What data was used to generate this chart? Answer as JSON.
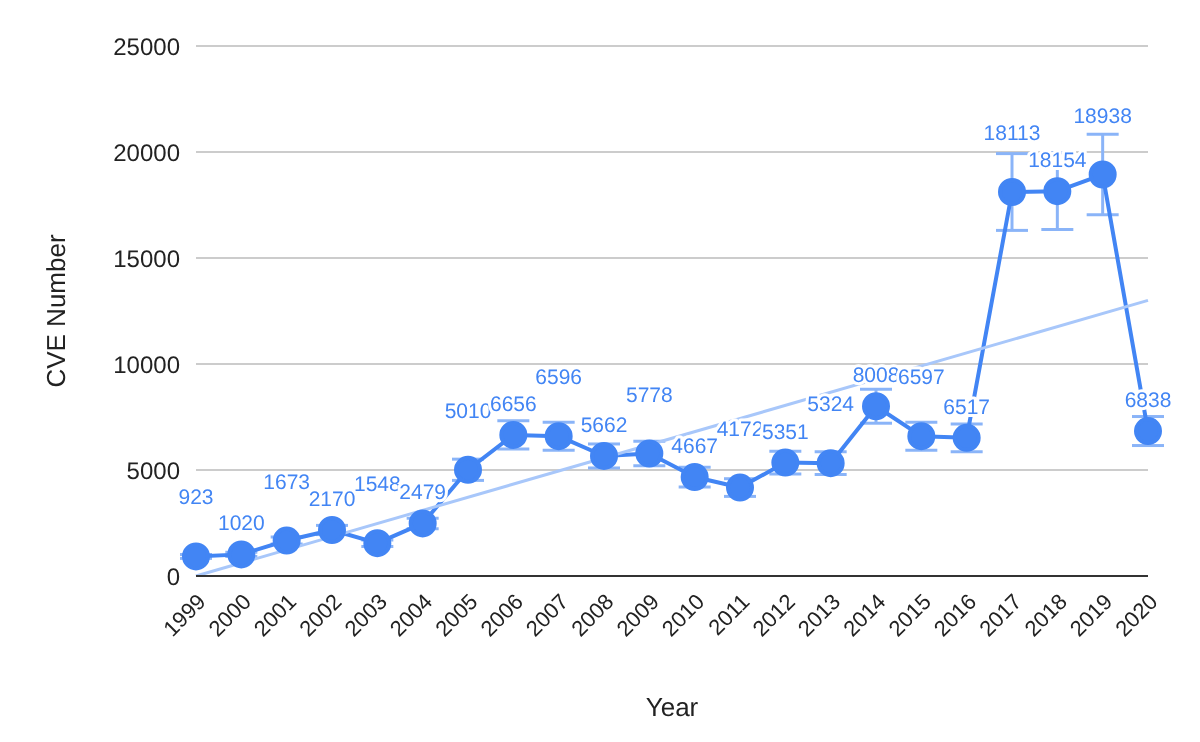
{
  "chart_data": {
    "type": "line",
    "xlabel": "Year",
    "ylabel": "CVE Number",
    "categories": [
      "1999",
      "2000",
      "2001",
      "2002",
      "2003",
      "2004",
      "2005",
      "2006",
      "2007",
      "2008",
      "2009",
      "2010",
      "2011",
      "2012",
      "2013",
      "2014",
      "2015",
      "2016",
      "2017",
      "2018",
      "2019",
      "2020"
    ],
    "series": [
      {
        "color": "#4285f4",
        "values": [
          923,
          1020,
          1673,
          2170,
          1548,
          2479,
          5010,
          6656,
          6596,
          5662,
          5778,
          4667,
          4172,
          5351,
          5324,
          8008,
          6597,
          6517,
          18113,
          18154,
          18938,
          6838
        ],
        "errors": [
          92,
          102,
          167,
          217,
          155,
          248,
          501,
          666,
          660,
          566,
          578,
          467,
          417,
          535,
          532,
          801,
          660,
          652,
          1811,
          1815,
          1894,
          684
        ],
        "marker": "circle",
        "value_labels": [
          "923",
          "1020",
          "1673",
          "2170",
          "1548",
          "2479",
          "5010",
          "6656",
          "6596",
          "5662",
          "5778",
          "4667",
          "4172",
          "5351",
          "5324",
          "8008",
          "6597",
          "6517",
          "18113",
          "18154",
          "18938",
          "6838"
        ]
      },
      {
        "type": "line",
        "color": "#a8c7fa",
        "values": [
          0,
          null,
          null,
          null,
          null,
          null,
          null,
          null,
          null,
          null,
          null,
          null,
          null,
          null,
          null,
          null,
          null,
          null,
          null,
          null,
          null,
          13000
        ],
        "marker": "none"
      }
    ],
    "ylim": [
      0,
      25000
    ],
    "yticks": [
      0,
      5000,
      10000,
      15000,
      20000,
      25000
    ],
    "grid": "y",
    "legend": false
  }
}
